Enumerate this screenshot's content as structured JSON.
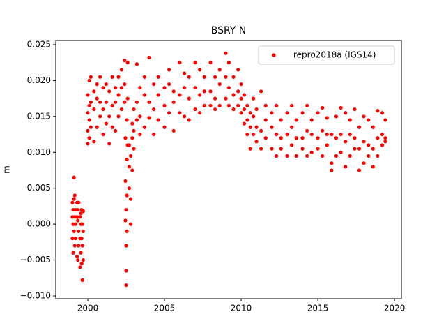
{
  "chart_data": {
    "type": "scatter",
    "title": "BSRY N",
    "y_label": "m",
    "xlim": [
      1997.91,
      2020.45
    ],
    "ylim": [
      -0.01039,
      0.02558
    ],
    "xticks": [
      2000,
      2005,
      2010,
      2015,
      2020
    ],
    "yticks": [
      {
        "value": -0.01,
        "label": "−0.010"
      },
      {
        "value": -0.005,
        "label": "−0.005"
      },
      {
        "value": 0,
        "label": "0.000"
      },
      {
        "value": 0.005,
        "label": "0.005"
      },
      {
        "value": 0.01,
        "label": "0.010"
      },
      {
        "value": 0.015,
        "label": "0.015"
      },
      {
        "value": 0.02,
        "label": "0.020"
      },
      {
        "value": 0.025,
        "label": "0.025"
      }
    ],
    "grid": false,
    "legend": "upper right",
    "series": [
      {
        "name": "repro2018a (IGS14)",
        "color": "#ff0000",
        "x": [
          1999.0,
          1999.0,
          1999.0,
          1999.05,
          1999.05,
          1999.05,
          1999.1,
          1999.1,
          1999.1,
          1999.15,
          1999.15,
          1999.15,
          1999.2,
          1999.2,
          1999.2,
          1999.3,
          1999.3,
          1999.3,
          1999.35,
          1999.35,
          1999.35,
          1999.4,
          1999.4,
          1999.4,
          1999.5,
          1999.5,
          1999.5,
          1999.55,
          1999.55,
          1999.55,
          1999.6,
          1999.6,
          1999.6,
          1999.65,
          1999.65,
          1999.65,
          1999.7,
          1999.7,
          1999.7,
          2000.0,
          2000.0,
          2000.0,
          2000.0,
          2000.1,
          2000.1,
          2000.1,
          2000.1,
          2000.2,
          2000.2,
          2000.2,
          2000.4,
          2000.4,
          2000.4,
          2000.6,
          2000.6,
          2000.6,
          2000.8,
          2000.8,
          2000.8,
          2001.0,
          2001.0,
          2001.0,
          2001.2,
          2001.2,
          2001.2,
          2001.4,
          2001.4,
          2001.4,
          2001.6,
          2001.6,
          2001.6,
          2001.8,
          2001.8,
          2001.8,
          2002.0,
          2002.0,
          2002.0,
          2002.2,
          2002.2,
          2002.2,
          2002.4,
          2002.4,
          2002.4,
          2002.45,
          2002.45,
          2002.45,
          2002.5,
          2002.5,
          2002.5,
          2002.5,
          2002.55,
          2002.55,
          2002.55,
          2002.55,
          2002.6,
          2002.6,
          2002.6,
          2002.7,
          2002.7,
          2002.7,
          2002.8,
          2002.8,
          2002.8,
          2002.9,
          2002.9,
          2002.9,
          2003.0,
          2003.0,
          2003.0,
          2003.2,
          2003.2,
          2003.2,
          2003.4,
          2003.4,
          2003.4,
          2003.7,
          2003.7,
          2003.7,
          2004.0,
          2004.0,
          2004.0,
          2004.3,
          2004.3,
          2004.3,
          2004.6,
          2004.6,
          2004.6,
          2005.0,
          2005.0,
          2005.0,
          2005.3,
          2005.3,
          2005.3,
          2005.6,
          2005.6,
          2005.6,
          2006.0,
          2006.0,
          2006.0,
          2006.3,
          2006.3,
          2006.3,
          2006.6,
          2006.6,
          2006.6,
          2007.0,
          2007.0,
          2007.0,
          2007.3,
          2007.3,
          2007.3,
          2007.6,
          2007.6,
          2007.6,
          2008.0,
          2008.0,
          2008.0,
          2008.3,
          2008.3,
          2008.3,
          2008.6,
          2008.6,
          2008.6,
          2009.0,
          2009.0,
          2009.0,
          2009.2,
          2009.2,
          2009.2,
          2009.5,
          2009.5,
          2009.5,
          2009.8,
          2009.8,
          2009.8,
          2010.0,
          2010.0,
          2010.0,
          2010.2,
          2010.2,
          2010.2,
          2010.4,
          2010.4,
          2010.4,
          2010.6,
          2010.6,
          2010.6,
          2010.8,
          2010.8,
          2010.8,
          2011.0,
          2011.0,
          2011.0,
          2011.3,
          2011.3,
          2011.3,
          2011.6,
          2011.6,
          2011.6,
          2012.0,
          2012.0,
          2012.0,
          2012.3,
          2012.3,
          2012.3,
          2012.6,
          2012.6,
          2012.6,
          2013.0,
          2013.0,
          2013.0,
          2013.3,
          2013.3,
          2013.3,
          2013.6,
          2013.6,
          2013.6,
          2014.0,
          2014.0,
          2014.0,
          2014.3,
          2014.3,
          2014.3,
          2014.6,
          2014.6,
          2014.6,
          2015.0,
          2015.0,
          2015.0,
          2015.3,
          2015.3,
          2015.3,
          2015.6,
          2015.6,
          2015.6,
          2015.9,
          2015.9,
          2015.9,
          2016.2,
          2016.2,
          2016.2,
          2016.5,
          2016.5,
          2016.5,
          2016.8,
          2016.8,
          2016.8,
          2017.1,
          2017.1,
          2017.1,
          2017.4,
          2017.4,
          2017.4,
          2017.7,
          2017.7,
          2017.7,
          2018.0,
          2018.0,
          2018.0,
          2018.3,
          2018.3,
          2018.3,
          2018.6,
          2018.6,
          2018.6,
          2018.9,
          2018.9,
          2018.9,
          2019.2,
          2019.2,
          2019.2,
          2019.4,
          2019.4,
          2019.4
        ],
        "values": [
          0.001,
          -0.002,
          0.003,
          -0.004,
          0.0,
          0.002,
          0.0065,
          -0.001,
          0.0035,
          0.004,
          -0.003,
          0.001,
          -0.002,
          0.002,
          0.0,
          0.001,
          -0.0045,
          0.003,
          -0.005,
          0.0005,
          0.002,
          -0.001,
          0.003,
          -0.003,
          -0.006,
          -0.002,
          0.001,
          0.0,
          -0.004,
          0.0015,
          -0.0055,
          -0.002,
          0.002,
          -0.0078,
          -0.003,
          0.0,
          -0.001,
          0.0018,
          -0.005,
          0.0112,
          0.0155,
          0.018,
          0.013,
          0.0145,
          0.02,
          0.0165,
          0.012,
          0.0205,
          0.017,
          0.0135,
          0.0115,
          0.016,
          0.0185,
          0.0175,
          0.0135,
          0.0195,
          0.015,
          0.0205,
          0.017,
          0.0125,
          0.016,
          0.019,
          0.0195,
          0.017,
          0.014,
          0.0112,
          0.015,
          0.0185,
          0.0205,
          0.0165,
          0.0135,
          0.013,
          0.017,
          0.019,
          0.018,
          0.0205,
          0.015,
          0.0215,
          0.019,
          0.016,
          0.0228,
          0.0195,
          0.017,
          0.012,
          0.006,
          0.0005,
          -0.003,
          -0.0085,
          -0.0065,
          0.002,
          0.009,
          0.004,
          -0.001,
          0.0145,
          0.0175,
          0.011,
          0.0225,
          0.005,
          0.008,
          0.011,
          0.0,
          0.0035,
          0.0095,
          0.012,
          0.014,
          0.0075,
          0.013,
          0.016,
          0.0105,
          0.0223,
          0.017,
          0.0145,
          0.015,
          0.019,
          0.0125,
          0.018,
          0.0205,
          0.0135,
          0.0232,
          0.017,
          0.0148,
          0.0125,
          0.016,
          0.0195,
          0.0145,
          0.018,
          0.0205,
          0.0165,
          0.0135,
          0.019,
          0.0195,
          0.0155,
          0.0215,
          0.013,
          0.017,
          0.0185,
          0.0225,
          0.018,
          0.0155,
          0.015,
          0.019,
          0.021,
          0.0145,
          0.0175,
          0.0205,
          0.0225,
          0.019,
          0.016,
          0.0155,
          0.018,
          0.0215,
          0.0165,
          0.0205,
          0.0185,
          0.0225,
          0.0185,
          0.0165,
          0.0175,
          0.0205,
          0.016,
          0.0195,
          0.0165,
          0.0215,
          0.0238,
          0.0205,
          0.0175,
          0.0225,
          0.019,
          0.0165,
          0.018,
          0.0205,
          0.016,
          0.0215,
          0.0185,
          0.0165,
          0.0175,
          0.0155,
          0.0195,
          0.016,
          0.014,
          0.018,
          0.0125,
          0.0145,
          0.0165,
          0.0105,
          0.0135,
          0.0155,
          0.015,
          0.0125,
          0.0175,
          0.0135,
          0.0115,
          0.016,
          0.0185,
          0.013,
          0.0105,
          0.0145,
          0.012,
          0.0165,
          0.0135,
          0.0105,
          0.0155,
          0.0165,
          0.0125,
          0.0095,
          0.012,
          0.0145,
          0.0105,
          0.0155,
          0.0125,
          0.0095,
          0.0165,
          0.0135,
          0.011,
          0.012,
          0.0145,
          0.0095,
          0.0155,
          0.012,
          0.0105,
          0.0165,
          0.013,
          0.0095,
          0.0125,
          0.0145,
          0.01,
          0.0155,
          0.012,
          0.0105,
          0.0162,
          0.013,
          0.0095,
          0.0125,
          0.0148,
          0.011,
          0.0085,
          0.0125,
          0.0075,
          0.015,
          0.012,
          0.0095,
          0.0162,
          0.0125,
          0.01,
          0.0155,
          0.0115,
          0.008,
          0.0125,
          0.0145,
          0.0095,
          0.016,
          0.012,
          0.0105,
          0.0135,
          0.0105,
          0.0075,
          0.015,
          0.0115,
          0.0085,
          0.0145,
          0.011,
          0.0095,
          0.0135,
          0.0105,
          0.008,
          0.0158,
          0.012,
          0.0095,
          0.0155,
          0.0125,
          0.011,
          0.0145,
          0.012,
          0.0115
        ]
      }
    ]
  }
}
